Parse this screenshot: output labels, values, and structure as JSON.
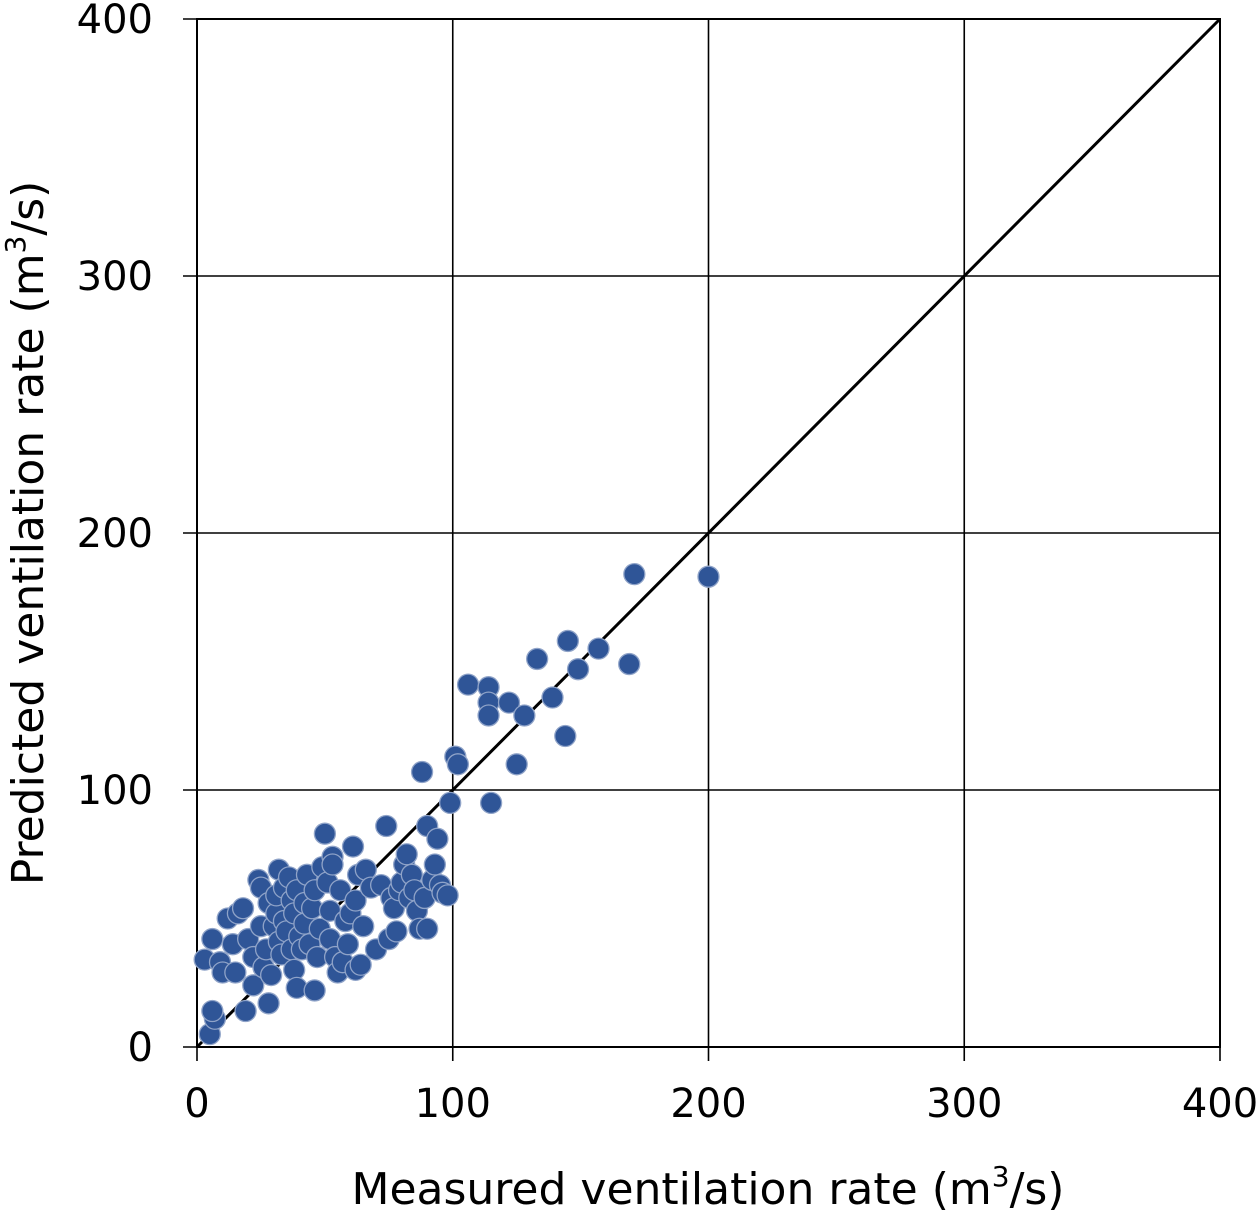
{
  "chart_data": {
    "type": "scatter",
    "xlabel": {
      "main": "Measured ventilation rate (m",
      "sup": "3",
      "tail": "/s)"
    },
    "ylabel": {
      "main": "Predicted ventilation rate (m",
      "sup": "3",
      "tail": "/s)"
    },
    "xlim": [
      0,
      400
    ],
    "ylim": [
      0,
      400
    ],
    "xticks": [
      "0",
      "100",
      "200",
      "300",
      "400"
    ],
    "yticks": [
      "0",
      "100",
      "200",
      "300",
      "400"
    ],
    "grid": true,
    "reference_line": {
      "from": [
        0,
        0
      ],
      "to": [
        400,
        400
      ]
    },
    "marker_color": "#2f5597",
    "marker_edge": "#8fa3c8",
    "line_color": "#000000",
    "points": [
      [
        5,
        5
      ],
      [
        7,
        11
      ],
      [
        6,
        14
      ],
      [
        3,
        34
      ],
      [
        6,
        42
      ],
      [
        9,
        33
      ],
      [
        10,
        29
      ],
      [
        12,
        50
      ],
      [
        14,
        40
      ],
      [
        15,
        29
      ],
      [
        16,
        52
      ],
      [
        18,
        54
      ],
      [
        19,
        14
      ],
      [
        20,
        42
      ],
      [
        22,
        35
      ],
      [
        22,
        24
      ],
      [
        24,
        65
      ],
      [
        25,
        62
      ],
      [
        25,
        47
      ],
      [
        26,
        31
      ],
      [
        27,
        38
      ],
      [
        28,
        17
      ],
      [
        28,
        56
      ],
      [
        29,
        28
      ],
      [
        30,
        47
      ],
      [
        31,
        52
      ],
      [
        31,
        59
      ],
      [
        32,
        69
      ],
      [
        32,
        41
      ],
      [
        33,
        36
      ],
      [
        34,
        62
      ],
      [
        34,
        49
      ],
      [
        35,
        45
      ],
      [
        36,
        66
      ],
      [
        37,
        57
      ],
      [
        37,
        38
      ],
      [
        38,
        30
      ],
      [
        38,
        52
      ],
      [
        39,
        61
      ],
      [
        39,
        23
      ],
      [
        40,
        43
      ],
      [
        41,
        38
      ],
      [
        42,
        48
      ],
      [
        42,
        56
      ],
      [
        43,
        67
      ],
      [
        44,
        40
      ],
      [
        45,
        54
      ],
      [
        46,
        61
      ],
      [
        46,
        22
      ],
      [
        47,
        35
      ],
      [
        48,
        46
      ],
      [
        49,
        70
      ],
      [
        50,
        83
      ],
      [
        51,
        64
      ],
      [
        52,
        53
      ],
      [
        52,
        42
      ],
      [
        53,
        74
      ],
      [
        53,
        71
      ],
      [
        54,
        35
      ],
      [
        55,
        29
      ],
      [
        56,
        61
      ],
      [
        57,
        33
      ],
      [
        58,
        49
      ],
      [
        59,
        40
      ],
      [
        60,
        52
      ],
      [
        61,
        78
      ],
      [
        62,
        57
      ],
      [
        62,
        30
      ],
      [
        63,
        67
      ],
      [
        64,
        32
      ],
      [
        65,
        47
      ],
      [
        66,
        69
      ],
      [
        68,
        62
      ],
      [
        70,
        38
      ],
      [
        72,
        63
      ],
      [
        74,
        86
      ],
      [
        75,
        42
      ],
      [
        76,
        58
      ],
      [
        77,
        54
      ],
      [
        78,
        45
      ],
      [
        79,
        61
      ],
      [
        80,
        64
      ],
      [
        81,
        71
      ],
      [
        82,
        75
      ],
      [
        83,
        58
      ],
      [
        84,
        67
      ],
      [
        85,
        61
      ],
      [
        86,
        53
      ],
      [
        87,
        46
      ],
      [
        88,
        107
      ],
      [
        89,
        58
      ],
      [
        90,
        46
      ],
      [
        90,
        86
      ],
      [
        92,
        65
      ],
      [
        93,
        71
      ],
      [
        94,
        81
      ],
      [
        95,
        63
      ],
      [
        96,
        60
      ],
      [
        98,
        59
      ],
      [
        99,
        95
      ],
      [
        101,
        113
      ],
      [
        102,
        110
      ],
      [
        106,
        141
      ],
      [
        114,
        140
      ],
      [
        114,
        134
      ],
      [
        114,
        129
      ],
      [
        115,
        95
      ],
      [
        122,
        134
      ],
      [
        125,
        110
      ],
      [
        128,
        129
      ],
      [
        133,
        151
      ],
      [
        139,
        136
      ],
      [
        144,
        121
      ],
      [
        145,
        158
      ],
      [
        149,
        147
      ],
      [
        157,
        155
      ],
      [
        169,
        149
      ],
      [
        171,
        184
      ],
      [
        200,
        183
      ]
    ]
  }
}
